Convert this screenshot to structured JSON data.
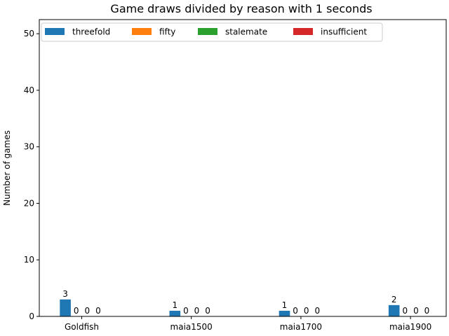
{
  "chart_data": {
    "type": "bar",
    "title": "Game draws divided by reason with 1 seconds",
    "xlabel": "",
    "ylabel": "Number of games",
    "categories": [
      "Goldfish",
      "maia1500",
      "maia1700",
      "maia1900"
    ],
    "series": [
      {
        "name": "threefold",
        "color": "#1f77b4",
        "values": [
          3,
          1,
          1,
          2
        ]
      },
      {
        "name": "fifty",
        "color": "#ff7f0e",
        "values": [
          0,
          0,
          0,
          0
        ]
      },
      {
        "name": "stalemate",
        "color": "#2ca02c",
        "values": [
          0,
          0,
          0,
          0
        ]
      },
      {
        "name": "insufficient",
        "color": "#d62728",
        "values": [
          0,
          0,
          0,
          0
        ]
      }
    ],
    "ylim": [
      0,
      52.5
    ],
    "yticks": [
      0,
      10,
      20,
      30,
      40,
      50
    ],
    "grid": false,
    "legend_position": "top, spanning width (4 columns)"
  }
}
